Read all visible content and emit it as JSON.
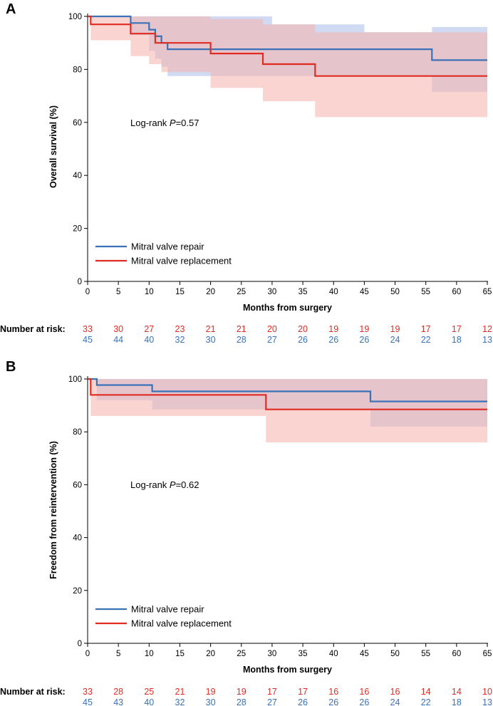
{
  "figure": {
    "colors": {
      "repair": "#3a72b8",
      "replacement": "#e02b23",
      "repair_band": "#a9bdea",
      "replacement_band": "#f6b0aa"
    },
    "legend": {
      "repair_label": "Mitral valve repair",
      "replacement_label": "Mitral valve replacement"
    }
  },
  "chart_data": [
    {
      "type": "line",
      "subtype": "kaplan-meier",
      "panel": "A",
      "title": "",
      "xlabel": "Months from surgery",
      "ylabel": "Overall survival (%)",
      "xlim": [
        0,
        65
      ],
      "ylim": [
        0,
        100
      ],
      "xticks": [
        0,
        5,
        10,
        15,
        20,
        25,
        30,
        35,
        40,
        45,
        50,
        55,
        60,
        65
      ],
      "yticks": [
        0,
        20,
        40,
        60,
        80,
        100
      ],
      "annotation": {
        "prefix": "Log-rank ",
        "p": "P",
        "value": "=0.57"
      },
      "series": [
        {
          "name": "Mitral valve repair",
          "x": [
            0,
            7,
            10,
            11,
            12,
            13,
            56,
            65
          ],
          "y": [
            100,
            97.5,
            95,
            92.5,
            90,
            87.6,
            83.5,
            83.5
          ],
          "ci_lower": [
            [
              0,
              100
            ],
            [
              7,
              93
            ],
            [
              10,
              87
            ],
            [
              11,
              84
            ],
            [
              12,
              81
            ],
            [
              13,
              77.5
            ],
            [
              56,
              71.5
            ],
            [
              65,
              71.5
            ]
          ],
          "ci_upper": [
            [
              0,
              100
            ],
            [
              7,
              100
            ],
            [
              30,
              97
            ],
            [
              45,
              94
            ],
            [
              56,
              96
            ],
            [
              65,
              96
            ]
          ]
        },
        {
          "name": "Mitral valve replacement",
          "x": [
            0,
            0.5,
            7,
            11,
            12,
            20,
            28.5,
            37,
            65
          ],
          "y": [
            100,
            97,
            93.5,
            90,
            90,
            86,
            82,
            77.5,
            77.5
          ],
          "ci_lower": [
            [
              0,
              100
            ],
            [
              0.5,
              91
            ],
            [
              6,
              91
            ],
            [
              7,
              85
            ],
            [
              9,
              85
            ],
            [
              10,
              82
            ],
            [
              12,
              79
            ],
            [
              20,
              73
            ],
            [
              28.5,
              68
            ],
            [
              37,
              62
            ],
            [
              65,
              62
            ]
          ],
          "ci_upper": [
            [
              0,
              100
            ],
            [
              0.5,
              100
            ],
            [
              15,
              100
            ],
            [
              20,
              99
            ],
            [
              28.5,
              97
            ],
            [
              37,
              94
            ],
            [
              65,
              94
            ]
          ]
        }
      ],
      "number_at_risk": {
        "label": "Number at risk:",
        "replacement": [
          "33",
          "30",
          "27",
          "23",
          "21",
          "21",
          "20",
          "20",
          "19",
          "19",
          "19",
          "17",
          "17",
          "12"
        ],
        "repair": [
          "45",
          "44",
          "40",
          "32",
          "30",
          "28",
          "27",
          "26",
          "26",
          "26",
          "24",
          "22",
          "18",
          "13"
        ]
      }
    },
    {
      "type": "line",
      "subtype": "kaplan-meier",
      "panel": "B",
      "title": "",
      "xlabel": "Months from surgery",
      "ylabel": "Freedom from reintervention (%)",
      "xlim": [
        0,
        65
      ],
      "ylim": [
        0,
        100
      ],
      "xticks": [
        0,
        5,
        10,
        15,
        20,
        25,
        30,
        35,
        40,
        45,
        50,
        55,
        60,
        65
      ],
      "yticks": [
        0,
        20,
        40,
        60,
        80,
        100
      ],
      "annotation": {
        "prefix": "Log-rank ",
        "p": "P",
        "value": "=0.62"
      },
      "series": [
        {
          "name": "Mitral valve repair",
          "x": [
            0,
            1.5,
            10.5,
            46,
            65
          ],
          "y": [
            100,
            97.7,
            95.3,
            91.5,
            91.5
          ],
          "ci_lower": [
            [
              0,
              100
            ],
            [
              1.5,
              92
            ],
            [
              10.5,
              88.5
            ],
            [
              46,
              82
            ],
            [
              65,
              82
            ]
          ],
          "ci_upper": [
            [
              0,
              100
            ],
            [
              65,
              100
            ]
          ]
        },
        {
          "name": "Mitral valve replacement",
          "x": [
            0,
            0.5,
            29,
            65
          ],
          "y": [
            100,
            94,
            88.5,
            88.5
          ],
          "ci_lower": [
            [
              0,
              100
            ],
            [
              0.5,
              86
            ],
            [
              29,
              76
            ],
            [
              65,
              76
            ]
          ],
          "ci_upper": [
            [
              0,
              100
            ],
            [
              65,
              100
            ]
          ]
        }
      ],
      "number_at_risk": {
        "label": "Number at risk:",
        "replacement": [
          "33",
          "28",
          "25",
          "21",
          "19",
          "19",
          "17",
          "17",
          "16",
          "16",
          "16",
          "14",
          "14",
          "10"
        ],
        "repair": [
          "45",
          "43",
          "40",
          "32",
          "30",
          "28",
          "27",
          "26",
          "26",
          "26",
          "24",
          "22",
          "18",
          "13"
        ]
      }
    }
  ]
}
